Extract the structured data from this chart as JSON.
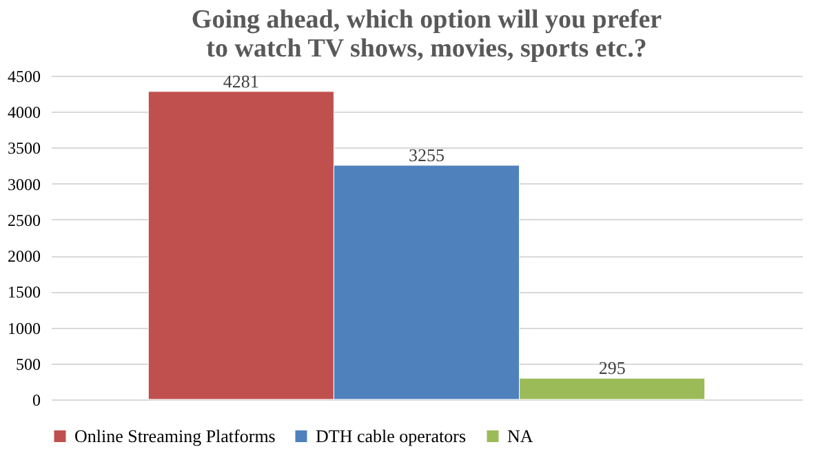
{
  "chart_data": {
    "type": "bar",
    "title": "Going ahead, which option will you prefer to watch TV shows, movies, sports etc.?",
    "categories": [
      null
    ],
    "series": [
      {
        "name": "Online Streaming Platforms",
        "color": "#c0504d",
        "values": [
          4281
        ]
      },
      {
        "name": "DTH cable operators",
        "color": "#4f81bd",
        "values": [
          3255
        ]
      },
      {
        "name": "NA",
        "color": "#9bbb59",
        "values": [
          295
        ]
      }
    ],
    "ylim": [
      0,
      4500
    ],
    "yticks": [
      0,
      500,
      1000,
      1500,
      2000,
      2500,
      3000,
      3500,
      4000,
      4500
    ],
    "grid": "y",
    "legend": "bottom",
    "data_labels": true
  }
}
